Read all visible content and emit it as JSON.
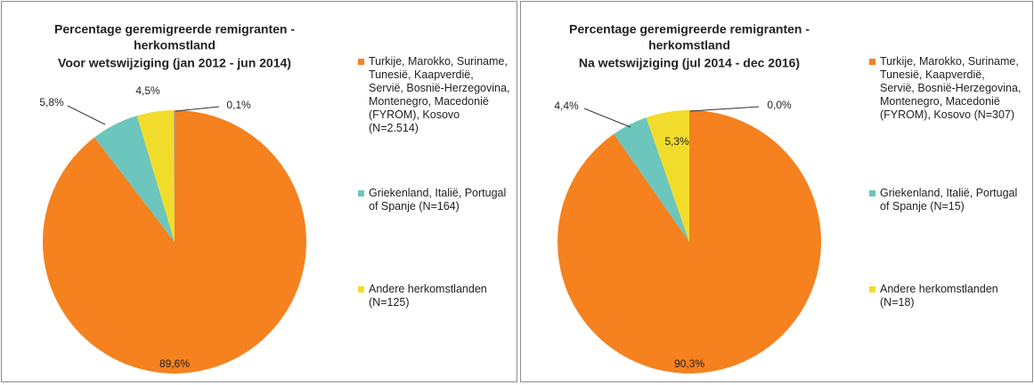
{
  "chart_data": [
    {
      "type": "pie",
      "title": [
        "Percentage geremigreerde remigranten -",
        "herkomstland",
        "Voor wetswijziging (jan 2012 - jun 2014)"
      ],
      "categories": [
        "Turkije, Marokko, Suriname, Tunesië, Kaapverdië, Servië, Bosnië-Herzegovina, Montenegro, Macedonië (FYROM), Kosovo (N=2.514)",
        "Griekenland, Italië, Portugal of Spanje (N=164)",
        "Andere herkomstlanden (N=125)",
        null
      ],
      "values": [
        89.6,
        5.8,
        4.5,
        0.1
      ],
      "value_labels": [
        "89,6%",
        "5,8%",
        "4,5%",
        "0,1%"
      ],
      "colors": [
        "#f5811f",
        "#6cc6bd",
        "#f2dc2b",
        "#9aa0c8"
      ]
    },
    {
      "type": "pie",
      "title": [
        "Percentage geremigreerde remigranten -",
        "herkomstland",
        "Na wetswijziging (jul 2014 - dec 2016)"
      ],
      "categories": [
        "Turkije, Marokko, Suriname, Tunesië, Kaapverdië, Servië, Bosnië-Herzegovina, Montenegro, Macedonië (FYROM), Kosovo (N=307)",
        "Griekenland, Italië, Portugal of Spanje (N=15)",
        "Andere herkomstlanden (N=18)",
        null
      ],
      "values": [
        90.3,
        4.4,
        5.3,
        0.0
      ],
      "value_labels": [
        "90,3%",
        "4,4%",
        "5,3%",
        "0,0%"
      ],
      "colors": [
        "#f5811f",
        "#6cc6bd",
        "#f2dc2b",
        "#9aa0c8"
      ]
    }
  ]
}
